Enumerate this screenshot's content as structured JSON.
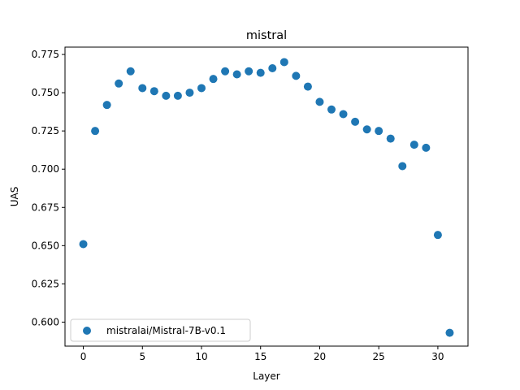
{
  "chart_data": {
    "type": "scatter",
    "title": "mistral",
    "xlabel": "Layer",
    "ylabel": "UAS",
    "xlim": [
      -1.55,
      32.55
    ],
    "ylim": [
      0.5843,
      0.7798
    ],
    "xticks": [
      0,
      5,
      10,
      15,
      20,
      25,
      30
    ],
    "yticks": [
      0.6,
      0.625,
      0.65,
      0.675,
      0.7,
      0.725,
      0.75,
      0.775
    ],
    "ytick_labels": [
      "0.600",
      "0.625",
      "0.650",
      "0.675",
      "0.700",
      "0.725",
      "0.750",
      "0.775"
    ],
    "grid": false,
    "legend_position": "lower-left",
    "series": [
      {
        "name": "mistralai/Mistral-7B-v0.1",
        "color": "#1f77b4",
        "x": [
          0,
          1,
          2,
          3,
          4,
          5,
          6,
          7,
          8,
          9,
          10,
          11,
          12,
          13,
          14,
          15,
          16,
          17,
          18,
          19,
          20,
          21,
          22,
          23,
          24,
          25,
          26,
          27,
          28,
          29,
          30,
          31
        ],
        "y": [
          0.651,
          0.725,
          0.742,
          0.756,
          0.764,
          0.753,
          0.751,
          0.748,
          0.748,
          0.75,
          0.753,
          0.759,
          0.764,
          0.762,
          0.764,
          0.763,
          0.766,
          0.77,
          0.761,
          0.754,
          0.744,
          0.739,
          0.736,
          0.731,
          0.726,
          0.725,
          0.72,
          0.702,
          0.716,
          0.714,
          0.657,
          0.593
        ]
      }
    ]
  }
}
